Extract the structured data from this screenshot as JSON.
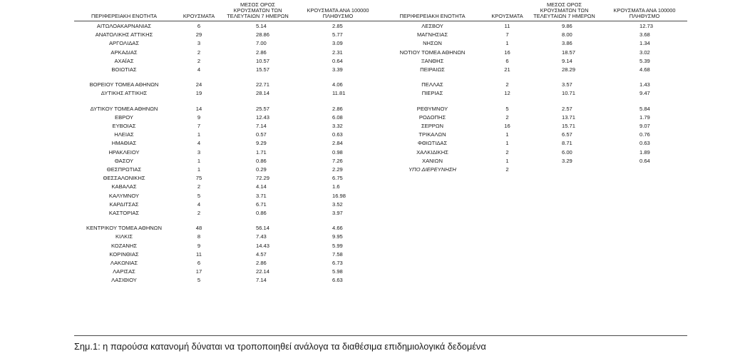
{
  "headers": {
    "region": "ΠΕΡΙΦΕΡΕΙΑΚΗ ΕΝΟΤΗΤΑ",
    "cases": "ΚΡΟΥΣΜΑΤΑ",
    "avg": "ΜΕΣΟΣ ΟΡΟΣ\nΚΡΟΥΣΜΑΤΩΝ ΤΩΝ\nΤΕΛΕΥΤΑΙΩΝ 7 ΗΜΕΡΩΝ",
    "per100k": "ΚΡΟΥΣΜΑΤΑ ΑΝΑ 100000\nΠΛΗΘΥΣΜΟ"
  },
  "left_rows": [
    {
      "region": "ΑΙΤΩΛΟΑΚΑΡΝΑΝΙΑΣ",
      "cases": "6",
      "avg": "5.14",
      "per100k": "2.85"
    },
    {
      "region": "ΑΝΑΤΟΛΙΚΗΣ ΑΤΤΙΚΗΣ",
      "cases": "29",
      "avg": "28.86",
      "per100k": "5.77"
    },
    {
      "region": "ΑΡΓΟΛΙΔΑΣ",
      "cases": "3",
      "avg": "7.00",
      "per100k": "3.09"
    },
    {
      "region": "ΑΡΚΑΔΙΑΣ",
      "cases": "2",
      "avg": "2.86",
      "per100k": "2.31"
    },
    {
      "region": "ΑΧΑΪΑΣ",
      "cases": "2",
      "avg": "10.57",
      "per100k": "0.64"
    },
    {
      "region": "ΒΟΙΩΤΙΑΣ",
      "cases": "4",
      "avg": "15.57",
      "per100k": "3.39"
    },
    {
      "region": "ΒΟΡΕΙΟΥ ΤΟΜΕΑ ΑΘΗΝΩΝ",
      "cases": "24",
      "avg": "22.71",
      "per100k": "4.06",
      "gap": true
    },
    {
      "region": "ΔΥΤΙΚΗΣ ΑΤΤΙΚΗΣ",
      "cases": "19",
      "avg": "28.14",
      "per100k": "11.81"
    },
    {
      "region": "ΔΥΤΙΚΟΥ ΤΟΜΕΑ ΑΘΗΝΩΝ",
      "cases": "14",
      "avg": "25.57",
      "per100k": "2.86",
      "gap": true
    },
    {
      "region": "ΕΒΡΟΥ",
      "cases": "9",
      "avg": "12.43",
      "per100k": "6.08"
    },
    {
      "region": "ΕΥΒΟΙΑΣ",
      "cases": "7",
      "avg": "7.14",
      "per100k": "3.32"
    },
    {
      "region": "ΗΛΕΙΑΣ",
      "cases": "1",
      "avg": "0.57",
      "per100k": "0.63"
    },
    {
      "region": "ΗΜΑΘΙΑΣ",
      "cases": "4",
      "avg": "9.29",
      "per100k": "2.84"
    },
    {
      "region": "ΗΡΑΚΛΕΙΟΥ",
      "cases": "3",
      "avg": "1.71",
      "per100k": "0.98"
    },
    {
      "region": "ΘΑΣΟΥ",
      "cases": "1",
      "avg": "0.86",
      "per100k": "7.26"
    },
    {
      "region": "ΘΕΣΠΡΩΤΙΑΣ",
      "cases": "1",
      "avg": "0.29",
      "per100k": "2.29"
    },
    {
      "region": "ΘΕΣΣΑΛΟΝΙΚΗΣ",
      "cases": "75",
      "avg": "72.29",
      "per100k": "6.75"
    },
    {
      "region": "ΚΑΒΑΛΑΣ",
      "cases": "2",
      "avg": "4.14",
      "per100k": "1.6"
    },
    {
      "region": "ΚΑΛΥΜΝΟΥ",
      "cases": "5",
      "avg": "3.71",
      "per100k": "16.98"
    },
    {
      "region": "ΚΑΡΔΙΤΣΑΣ",
      "cases": "4",
      "avg": "6.71",
      "per100k": "3.52"
    },
    {
      "region": "ΚΑΣΤΟΡΙΑΣ",
      "cases": "2",
      "avg": "0.86",
      "per100k": "3.97"
    },
    {
      "region": "ΚΕΝΤΡΙΚΟΥ ΤΟΜΕΑ ΑΘΗΝΩΝ",
      "cases": "48",
      "avg": "56.14",
      "per100k": "4.66",
      "gap": true
    },
    {
      "region": "ΚΙΛΚΙΣ",
      "cases": "8",
      "avg": "7.43",
      "per100k": "9.95"
    },
    {
      "region": "ΚΟΖΑΝΗΣ",
      "cases": "9",
      "avg": "14.43",
      "per100k": "5.99"
    },
    {
      "region": "ΚΟΡΙΝΘΙΑΣ",
      "cases": "11",
      "avg": "4.57",
      "per100k": "7.58"
    },
    {
      "region": "ΛΑΚΩΝΙΑΣ",
      "cases": "6",
      "avg": "2.86",
      "per100k": "6.73"
    },
    {
      "region": "ΛΑΡΙΣΑΣ",
      "cases": "17",
      "avg": "22.14",
      "per100k": "5.98"
    },
    {
      "region": "ΛΑΣΙΘΙΟΥ",
      "cases": "5",
      "avg": "7.14",
      "per100k": "6.63"
    }
  ],
  "right_rows": [
    {
      "region": "ΛΕΣΒΟΥ",
      "cases": "11",
      "avg": "9.86",
      "per100k": "12.73"
    },
    {
      "region": "ΜΑΓΝΗΣΙΑΣ",
      "cases": "7",
      "avg": "8.00",
      "per100k": "3.68"
    },
    {
      "region": "ΝΗΣΩΝ",
      "cases": "1",
      "avg": "3.86",
      "per100k": "1.34"
    },
    {
      "region": "ΝΟΤΙΟΥ ΤΟΜΕΑ ΑΘΗΝΩΝ",
      "cases": "16",
      "avg": "18.57",
      "per100k": "3.02"
    },
    {
      "region": "ΞΑΝΘΗΣ",
      "cases": "6",
      "avg": "9.14",
      "per100k": "5.39"
    },
    {
      "region": "ΠΕΙΡΑΙΩΣ",
      "cases": "21",
      "avg": "28.29",
      "per100k": "4.68"
    },
    {
      "region": "ΠΕΛΛΑΣ",
      "cases": "2",
      "avg": "3.57",
      "per100k": "1.43",
      "gap": true
    },
    {
      "region": "ΠΙΕΡΙΑΣ",
      "cases": "12",
      "avg": "10.71",
      "per100k": "9.47"
    },
    {
      "region": "ΡΕΘΥΜΝΟΥ",
      "cases": "5",
      "avg": "2.57",
      "per100k": "5.84",
      "gap": true
    },
    {
      "region": "ΡΟΔΟΠΗΣ",
      "cases": "2",
      "avg": "13.71",
      "per100k": "1.79"
    },
    {
      "region": "ΣΕΡΡΩΝ",
      "cases": "16",
      "avg": "15.71",
      "per100k": "9.07"
    },
    {
      "region": "ΤΡΙΚΑΛΩΝ",
      "cases": "1",
      "avg": "6.57",
      "per100k": "0.76"
    },
    {
      "region": "ΦΘΙΩΤΙΔΑΣ",
      "cases": "1",
      "avg": "8.71",
      "per100k": "0.63"
    },
    {
      "region": "ΧΑΛΚΙΔΙΚΗΣ",
      "cases": "2",
      "avg": "6.00",
      "per100k": "1.89"
    },
    {
      "region": "ΧΑΝΙΩΝ",
      "cases": "1",
      "avg": "3.29",
      "per100k": "0.64"
    },
    {
      "region": "ΥΠΟ ΔΙΕΡΕΥΝΗΣΗ",
      "cases": "2",
      "avg": "",
      "per100k": "",
      "italic": true
    }
  ],
  "note": "Σημ.1: η παρούσα κατανομή δύναται να τροποποιηθεί ανάλογα τα διαθέσιμα επιδημιολογικά δεδομένα"
}
